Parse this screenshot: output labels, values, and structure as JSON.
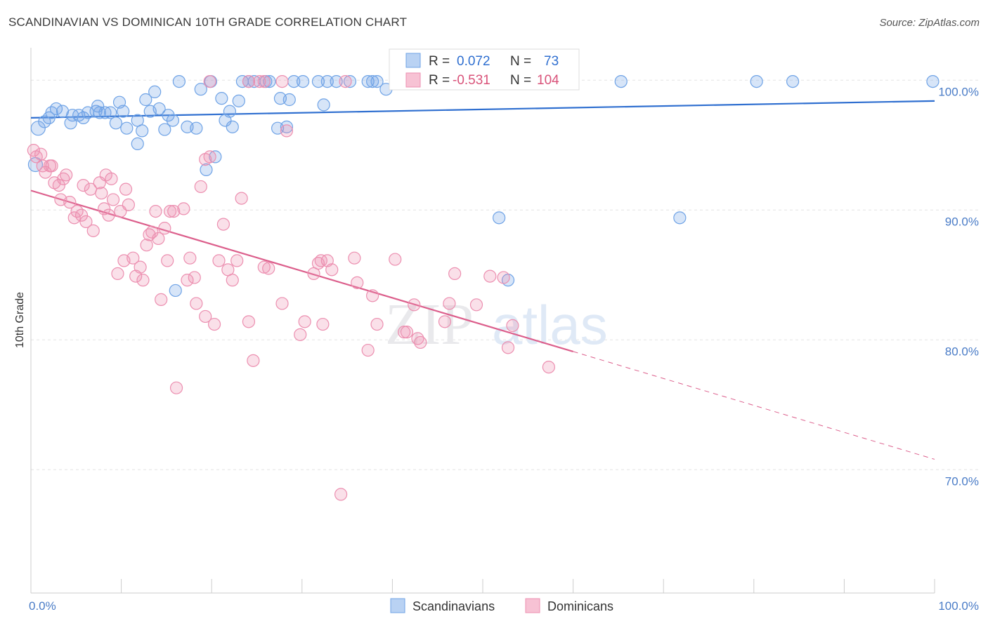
{
  "title": "SCANDINAVIAN VS DOMINICAN 10TH GRADE CORRELATION CHART",
  "source": "Source: ZipAtlas.com",
  "watermark": {
    "zip": "ZIP",
    "atlas": "atlas"
  },
  "colors": {
    "blue": "#6fa3e6",
    "blue_line": "#2f6fd0",
    "pink": "#ec8fb0",
    "pink_line": "#dc5f8c"
  },
  "chart_data": {
    "type": "scatter",
    "ylabel": "10th Grade",
    "xlim": [
      0,
      100
    ],
    "ylim": [
      60.5,
      102.5
    ],
    "x_tick_labels": [
      {
        "value": 0,
        "label": "0.0%"
      },
      {
        "value": 100,
        "label": "100.0%"
      }
    ],
    "y_ticks": [
      {
        "value": 100,
        "label": "100.0%"
      },
      {
        "value": 90,
        "label": "90.0%"
      },
      {
        "value": 80,
        "label": "80.0%"
      },
      {
        "value": 70,
        "label": "70.0%"
      }
    ],
    "legend": {
      "r_label": "R =",
      "n_label": "N =",
      "entries": [
        {
          "name": "Scandinavians",
          "r": "0.072",
          "n": "73"
        },
        {
          "name": "Dominicans",
          "r": "-0.531",
          "n": "104"
        }
      ]
    },
    "series": [
      {
        "name": "Scandinavians",
        "trend": {
          "x0": 0,
          "y0": 97.1,
          "x1": 100,
          "y1": 98.4
        },
        "points": [
          [
            0.5,
            93.5
          ],
          [
            0.8,
            96.3
          ],
          [
            1.5,
            96.8
          ],
          [
            2,
            97.1
          ],
          [
            2.3,
            97.5
          ],
          [
            2.8,
            97.8
          ],
          [
            3.5,
            97.6
          ],
          [
            4.4,
            96.7
          ],
          [
            4.6,
            97.3
          ],
          [
            5.3,
            97.3
          ],
          [
            5.8,
            97.1
          ],
          [
            6.3,
            97.5
          ],
          [
            7.2,
            97.6
          ],
          [
            7.4,
            98
          ],
          [
            7.6,
            97.5
          ],
          [
            8.2,
            97.5
          ],
          [
            8.8,
            97.5
          ],
          [
            9.4,
            96.7
          ],
          [
            9.8,
            98.3
          ],
          [
            10.2,
            97.6
          ],
          [
            10.6,
            96.3
          ],
          [
            11.8,
            96.9
          ],
          [
            12.3,
            96.1
          ],
          [
            12.7,
            98.5
          ],
          [
            13.2,
            97.6
          ],
          [
            13.7,
            99.1
          ],
          [
            14.2,
            97.8
          ],
          [
            14.8,
            96.2
          ],
          [
            15.2,
            97.3
          ],
          [
            15.7,
            96.9
          ],
          [
            16.4,
            99.9
          ],
          [
            17.3,
            96.4
          ],
          [
            18.3,
            96.3
          ],
          [
            18.8,
            99.3
          ],
          [
            19.4,
            93.1
          ],
          [
            19.9,
            99.9
          ],
          [
            20.4,
            94.1
          ],
          [
            21.1,
            98.6
          ],
          [
            21.5,
            96.9
          ],
          [
            22,
            97.6
          ],
          [
            22.3,
            96.4
          ],
          [
            23,
            98.4
          ],
          [
            23.4,
            99.9
          ],
          [
            24.1,
            99.9
          ],
          [
            24.7,
            99.9
          ],
          [
            26,
            99.9
          ],
          [
            26.4,
            99.9
          ],
          [
            27.3,
            96.3
          ],
          [
            27.6,
            98.6
          ],
          [
            28.3,
            96.4
          ],
          [
            28.6,
            98.5
          ],
          [
            29.1,
            99.9
          ],
          [
            30.1,
            99.9
          ],
          [
            31.8,
            99.9
          ],
          [
            32.4,
            98.1
          ],
          [
            32.8,
            99.9
          ],
          [
            33.8,
            99.9
          ],
          [
            35.3,
            99.9
          ],
          [
            37.3,
            99.9
          ],
          [
            37.8,
            99.9
          ],
          [
            38.3,
            99.9
          ],
          [
            39.3,
            99.3
          ],
          [
            42.3,
            99.9
          ],
          [
            46.8,
            99.9
          ],
          [
            50.3,
            99.9
          ],
          [
            51.3,
            99.9
          ],
          [
            51.8,
            89.4
          ],
          [
            52.8,
            84.6
          ],
          [
            65.3,
            99.9
          ],
          [
            71.8,
            89.4
          ],
          [
            80.3,
            99.9
          ],
          [
            84.3,
            99.9
          ],
          [
            99.8,
            99.9
          ],
          [
            16.0,
            83.8
          ],
          [
            11.8,
            95.1
          ]
        ]
      },
      {
        "name": "Dominicans",
        "trend": {
          "x0": 0,
          "y0": 91.5,
          "x1": 60,
          "y1": 79.1
        },
        "trend_dashed": {
          "x0": 60,
          "y0": 79.1,
          "x1": 100,
          "y1": 70.8
        },
        "points": [
          [
            0.3,
            94.6
          ],
          [
            0.6,
            94.1
          ],
          [
            1.1,
            94.3
          ],
          [
            1.3,
            93.4
          ],
          [
            1.6,
            92.9
          ],
          [
            2.1,
            93.4
          ],
          [
            2.3,
            93.4
          ],
          [
            2.6,
            92.1
          ],
          [
            3.1,
            91.9
          ],
          [
            3.3,
            90.8
          ],
          [
            3.6,
            92.4
          ],
          [
            3.9,
            92.7
          ],
          [
            4.3,
            90.6
          ],
          [
            4.8,
            89.4
          ],
          [
            5.1,
            89.9
          ],
          [
            5.6,
            89.6
          ],
          [
            5.8,
            91.9
          ],
          [
            6.1,
            89.1
          ],
          [
            6.6,
            91.6
          ],
          [
            6.9,
            88.4
          ],
          [
            7.6,
            92.1
          ],
          [
            7.8,
            91.3
          ],
          [
            8.1,
            90.1
          ],
          [
            8.3,
            92.7
          ],
          [
            8.6,
            89.6
          ],
          [
            8.9,
            92.4
          ],
          [
            9.1,
            90.8
          ],
          [
            9.6,
            85.1
          ],
          [
            9.9,
            89.9
          ],
          [
            10.3,
            86.1
          ],
          [
            10.5,
            91.6
          ],
          [
            10.8,
            90.4
          ],
          [
            11.3,
            86.3
          ],
          [
            11.6,
            84.9
          ],
          [
            12.1,
            85.6
          ],
          [
            12.4,
            84.6
          ],
          [
            12.8,
            87.3
          ],
          [
            13.1,
            88.1
          ],
          [
            13.4,
            88.3
          ],
          [
            13.8,
            89.9
          ],
          [
            14.1,
            87.8
          ],
          [
            14.4,
            83.1
          ],
          [
            14.8,
            88.6
          ],
          [
            15.1,
            86.1
          ],
          [
            15.4,
            89.9
          ],
          [
            15.8,
            89.9
          ],
          [
            16.1,
            76.3
          ],
          [
            16.9,
            90.1
          ],
          [
            17.3,
            84.6
          ],
          [
            17.6,
            86.3
          ],
          [
            18.1,
            84.8
          ],
          [
            18.3,
            82.8
          ],
          [
            18.8,
            91.8
          ],
          [
            19.3,
            93.9
          ],
          [
            19.3,
            81.8
          ],
          [
            19.8,
            94.1
          ],
          [
            20.3,
            81.2
          ],
          [
            20.8,
            86.1
          ],
          [
            21.3,
            88.9
          ],
          [
            21.8,
            85.4
          ],
          [
            22.3,
            84.6
          ],
          [
            22.8,
            86.1
          ],
          [
            23.3,
            90.9
          ],
          [
            24.1,
            99.9
          ],
          [
            24.6,
            78.4
          ],
          [
            24.1,
            81.4
          ],
          [
            25.8,
            85.6
          ],
          [
            26.3,
            85.5
          ],
          [
            27.8,
            82.8
          ],
          [
            28.3,
            96.1
          ],
          [
            29.8,
            80.4
          ],
          [
            30.3,
            81.4
          ],
          [
            31.3,
            85.1
          ],
          [
            31.8,
            85.9
          ],
          [
            32.1,
            86.1
          ],
          [
            32.3,
            81.2
          ],
          [
            32.8,
            86.1
          ],
          [
            33.3,
            85.4
          ],
          [
            34.8,
            99.9
          ],
          [
            34.3,
            68.1
          ],
          [
            35.8,
            86.3
          ],
          [
            36.1,
            84.4
          ],
          [
            37.3,
            79.2
          ],
          [
            37.8,
            83.4
          ],
          [
            38.3,
            81.2
          ],
          [
            40.3,
            86.2
          ],
          [
            41.3,
            80.6
          ],
          [
            41.6,
            80.6
          ],
          [
            42.4,
            82.7
          ],
          [
            42.8,
            80.1
          ],
          [
            43.1,
            79.8
          ],
          [
            45.8,
            81.4
          ],
          [
            46.3,
            82.8
          ],
          [
            46.9,
            85.1
          ],
          [
            49.3,
            82.7
          ],
          [
            50.8,
            84.9
          ],
          [
            52.3,
            84.8
          ],
          [
            52.8,
            79.4
          ],
          [
            53.3,
            81.1
          ],
          [
            57.3,
            77.9
          ],
          [
            27.8,
            99.9
          ],
          [
            19.8,
            99.9
          ],
          [
            25.8,
            99.9
          ],
          [
            25.3,
            99.9
          ]
        ]
      }
    ]
  }
}
